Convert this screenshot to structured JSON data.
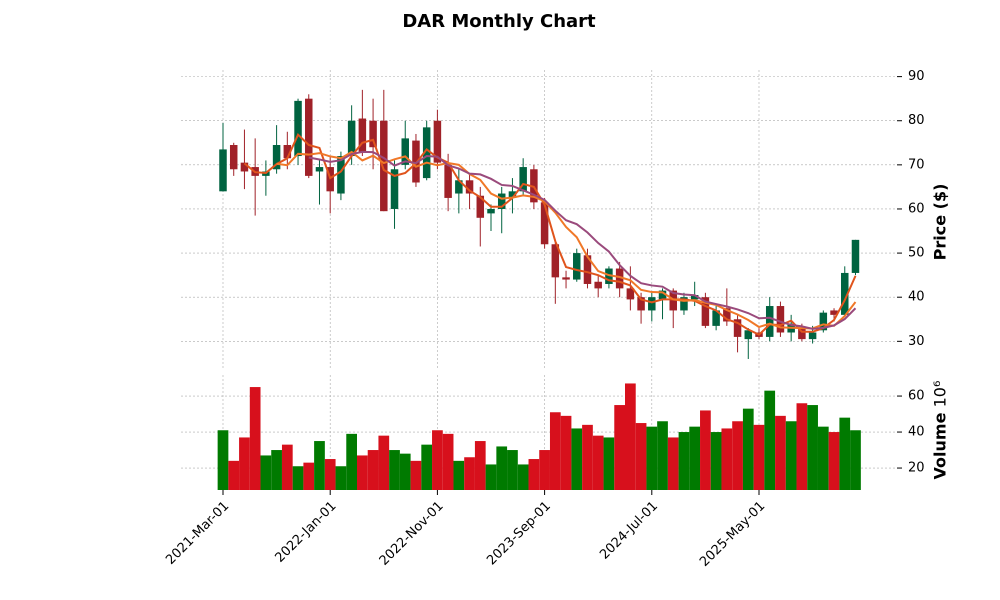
{
  "chart_data": {
    "type": "candlestick",
    "title": "DAR Monthly Chart",
    "categories": [
      "2021-Mar-01",
      null,
      null,
      null,
      null,
      null,
      null,
      null,
      null,
      null,
      "2022-Jan-01",
      null,
      null,
      null,
      null,
      null,
      null,
      null,
      null,
      null,
      "2022-Nov-01",
      null,
      null,
      null,
      null,
      null,
      null,
      null,
      null,
      null,
      "2023-Sep-01",
      null,
      null,
      null,
      null,
      null,
      null,
      null,
      null,
      null,
      "2024-Jul-01",
      null,
      null,
      null,
      null,
      null,
      null,
      null,
      null,
      null,
      "2025-May-01",
      null,
      null,
      null,
      null,
      null,
      null,
      null,
      null,
      null
    ],
    "open": [
      64,
      74.5,
      70.5,
      69.5,
      67.5,
      69,
      74.5,
      72,
      85,
      68.5,
      69.5,
      63.5,
      72,
      80.5,
      80,
      80,
      60,
      70,
      75.5,
      67,
      80,
      70,
      63.5,
      66.5,
      63,
      59,
      60,
      62.5,
      64,
      69,
      61.5,
      52,
      44.5,
      44,
      49.5,
      43.5,
      43,
      46.5,
      42,
      40,
      37,
      39.5,
      41.5,
      37,
      39.5,
      40,
      33.5,
      37.5,
      35,
      30.5,
      32,
      31,
      38,
      32,
      33,
      30.5,
      32.5,
      37,
      36,
      45.5
    ],
    "high": [
      79.5,
      75,
      78,
      76,
      71,
      79,
      77.5,
      85,
      86,
      71,
      72,
      73,
      83.5,
      87,
      85,
      87,
      71,
      80,
      77,
      80,
      82.5,
      72.5,
      69,
      68,
      65,
      61,
      65,
      67,
      71.5,
      70,
      62.5,
      53,
      46,
      51,
      51,
      45,
      47,
      48,
      47,
      41,
      41,
      42,
      42,
      41,
      43.5,
      41,
      38,
      42,
      36,
      33,
      33,
      40,
      39,
      36,
      34,
      33.5,
      37,
      37.5,
      47,
      53
    ],
    "low": [
      64,
      67.5,
      64.5,
      58.5,
      63,
      68,
      69,
      70,
      67,
      61,
      59,
      62,
      70,
      72,
      69,
      59.5,
      55.5,
      69,
      65,
      66.5,
      69,
      59.5,
      59,
      60,
      51.5,
      55,
      54.5,
      59,
      63,
      60,
      51,
      38.5,
      42,
      43.5,
      42,
      40,
      42,
      40,
      37,
      34,
      34.5,
      35,
      33,
      36,
      38,
      33,
      32.5,
      33.5,
      27.5,
      26,
      30.5,
      30,
      31,
      30,
      30,
      29.5,
      32,
      34.5,
      35.5,
      45
    ],
    "close": [
      73.5,
      69,
      68.5,
      67.5,
      68.5,
      74.5,
      71.5,
      84.5,
      67.5,
      69.5,
      64,
      72,
      80,
      73,
      74,
      59.5,
      69,
      76,
      66,
      78.5,
      70.5,
      62.5,
      66.5,
      63.5,
      58,
      60,
      63.5,
      64,
      69.5,
      61.5,
      52,
      44.5,
      44,
      50,
      43,
      42,
      46.5,
      42,
      39.5,
      37,
      40,
      41.5,
      37,
      40,
      40.5,
      33.5,
      37,
      34.5,
      31,
      32.5,
      31,
      38,
      32,
      34,
      30.5,
      32,
      36.5,
      36,
      45.5,
      53
    ],
    "volume": [
      41,
      24,
      37,
      65,
      27,
      30,
      33,
      21,
      23,
      35,
      25,
      21,
      39,
      27,
      30,
      38,
      30,
      28,
      24,
      33,
      41,
      39,
      24,
      26,
      35,
      22,
      32,
      30,
      22,
      25,
      30,
      51,
      49,
      42,
      44,
      38,
      37,
      55,
      67,
      45,
      43,
      46,
      37,
      40,
      43,
      52,
      40,
      42,
      46,
      53,
      44,
      63,
      49,
      46,
      56,
      55,
      43,
      40,
      48,
      41
    ],
    "up_color": "#006340",
    "down_color": "#a02128",
    "volume_up_color": "#007a00",
    "volume_down_color": "#d7101c",
    "mav": [
      3,
      6,
      9
    ],
    "mav_colors": [
      "#e0541c",
      "#f07828",
      "#9a4a7c"
    ],
    "ylim": [
      23.5,
      91.5
    ],
    "yticks": [
      30,
      40,
      50,
      60,
      70,
      80,
      90
    ],
    "volume_ylim": [
      7.8,
      71.7
    ],
    "volume_yticks": [
      20,
      40,
      60
    ],
    "ylabel": "Price ($)",
    "volume_ylabel": "Volume",
    "volume_offset": "10⁶",
    "grid": true
  }
}
